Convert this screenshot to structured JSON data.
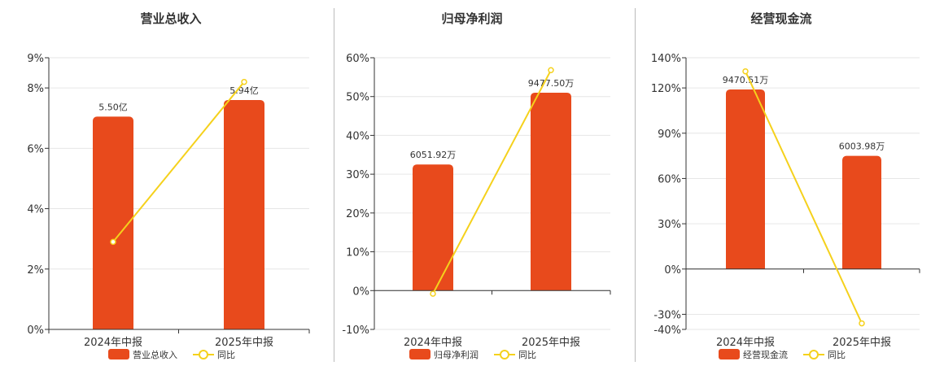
{
  "colors": {
    "bar": "#E84A1C",
    "line": "#F5D11C",
    "grid": "#E6E6E6",
    "axis": "#333333",
    "divider": "#BBBBBB"
  },
  "chart_data": [
    {
      "type": "bar",
      "title": "营业总收入",
      "categories": [
        "2024年中报",
        "2025年中报"
      ],
      "series": [
        {
          "name": "营业总收入",
          "type": "bar",
          "values": [
            7.05,
            7.6
          ],
          "labels": [
            "5.50亿",
            "5.94亿"
          ]
        },
        {
          "name": "同比",
          "type": "line",
          "values": [
            2.9,
            8.2
          ]
        }
      ],
      "yticks": [
        0,
        2,
        4,
        6,
        8,
        9
      ],
      "ylim": [
        0,
        9
      ],
      "tick_suffix": "%",
      "grid": true,
      "legend": "bottom"
    },
    {
      "type": "bar",
      "title": "归母净利润",
      "categories": [
        "2024年中报",
        "2025年中报"
      ],
      "series": [
        {
          "name": "归母净利润",
          "type": "bar",
          "values": [
            32.5,
            51
          ],
          "labels": [
            "6051.92万",
            "9477.50万"
          ]
        },
        {
          "name": "同比",
          "type": "line",
          "values": [
            -0.8,
            56.8
          ]
        }
      ],
      "yticks": [
        -10,
        0,
        10,
        20,
        30,
        40,
        50,
        60
      ],
      "ylim": [
        -10,
        60
      ],
      "tick_suffix": "%",
      "grid": true,
      "legend": "bottom"
    },
    {
      "type": "bar",
      "title": "经营现金流",
      "categories": [
        "2024年中报",
        "2025年中报"
      ],
      "series": [
        {
          "name": "经营现金流",
          "type": "bar",
          "values": [
            119,
            75
          ],
          "labels": [
            "9470.51万",
            "6003.98万"
          ]
        },
        {
          "name": "同比",
          "type": "line",
          "values": [
            131,
            -36
          ]
        }
      ],
      "yticks": [
        -40,
        -30,
        0,
        30,
        60,
        90,
        120,
        140
      ],
      "ylim": [
        -40,
        140
      ],
      "tick_suffix": "%",
      "grid": true,
      "legend": "bottom"
    }
  ]
}
